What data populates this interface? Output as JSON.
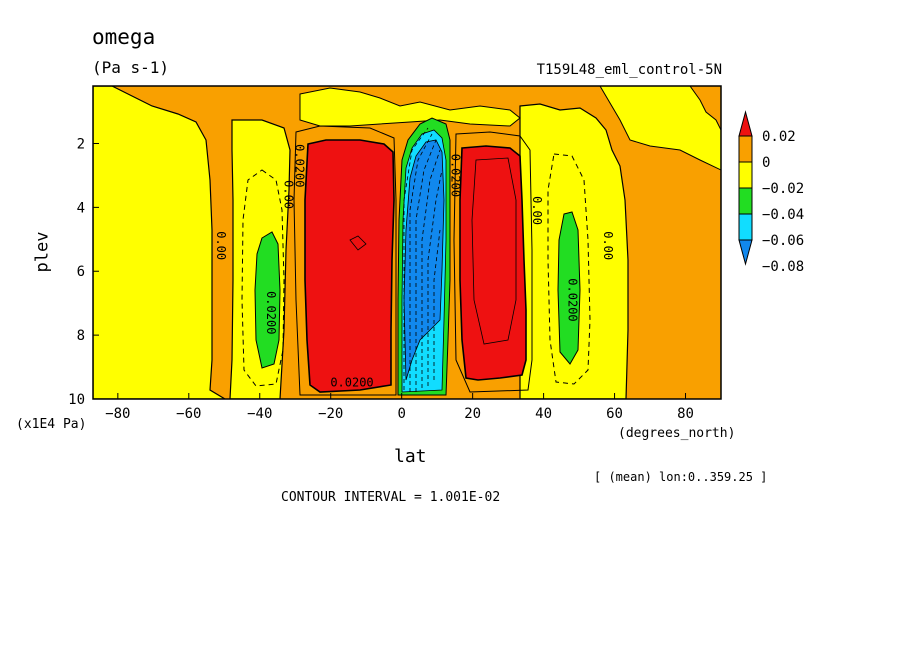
{
  "title": "omega",
  "units": "(Pa s-1)",
  "run_label": "T159L48_eml_control-5N",
  "ylabel": "plev",
  "yunit": "(x1E4 Pa)",
  "xlabel": "lat",
  "xunit": "(degrees_north)",
  "averaging": "[ (mean) lon:0..359.25 ]",
  "contour_interval": "CONTOUR INTERVAL = 1.001E-02",
  "colors": {
    "red": "#ee1111",
    "orange": "#f9a000",
    "yellow": "#ffff00",
    "green": "#22dd22",
    "cyan": "#11ddff",
    "blue": "#1188ee"
  },
  "chart_data": {
    "type": "heatmap",
    "xlim": [
      -87,
      90
    ],
    "ylim": [
      0.2,
      10
    ],
    "y_inverted": true,
    "x_ticks": [
      -80,
      -60,
      -40,
      -20,
      0,
      20,
      40,
      60,
      80
    ],
    "y_ticks": [
      2,
      4,
      6,
      8,
      10
    ],
    "colorbar": {
      "labels": [
        "0.02",
        "0",
        "-0.02",
        "-0.04",
        "-0.06",
        "-0.08"
      ],
      "bins": [
        {
          "range": "> 0.02",
          "color": "#ee1111"
        },
        {
          "range": "0 to 0.02",
          "color": "#f9a000"
        },
        {
          "range": "-0.02 to 0",
          "color": "#ffff00"
        },
        {
          "range": "-0.04 to -0.02",
          "color": "#22dd22"
        },
        {
          "range": "-0.06 to -0.04",
          "color": "#11ddff"
        },
        {
          "range": "< -0.06",
          "color": "#1188ee"
        }
      ]
    },
    "contour_labels": [
      {
        "text": "0.00",
        "lat": -51,
        "plev": 5.2
      },
      {
        "text": "0.0200",
        "lat": -37,
        "plev": 7.3
      },
      {
        "text": "0.00",
        "lat": -32,
        "plev": 3.6
      },
      {
        "text": "0.0200",
        "lat": -29,
        "plev": 2.7
      },
      {
        "text": "0.0200",
        "lat": -14,
        "plev": 9.5
      },
      {
        "text": "0.0200",
        "lat": 15,
        "plev": 3.0
      },
      {
        "text": "0.00",
        "lat": 38,
        "plev": 4.1
      },
      {
        "text": "0.0200",
        "lat": 48,
        "plev": 6.9
      },
      {
        "text": "0.00",
        "lat": 58,
        "plev": 5.2
      }
    ],
    "regions": [
      {
        "name": "sh-subsidence-max",
        "value": "> 0.02",
        "lat": [
          -29,
          -5
        ],
        "plev": [
          1.8,
          9.7
        ]
      },
      {
        "name": "nh-subsidence-max",
        "value": "> 0.02",
        "lat": [
          15,
          33
        ],
        "plev": [
          2.0,
          9.0
        ]
      },
      {
        "name": "itcz-ascent",
        "value": "< -0.06",
        "lat": [
          0,
          10
        ],
        "plev": [
          1.2,
          9.8
        ]
      },
      {
        "name": "sh-weak-ascent",
        "value": "-0.04 to -0.02",
        "lat": [
          -43,
          -36
        ],
        "plev": [
          4.5,
          8.9
        ]
      },
      {
        "name": "nh-weak-ascent",
        "value": "-0.04 to -0.02",
        "lat": [
          44,
          50
        ],
        "plev": [
          4.1,
          8.9
        ]
      }
    ]
  }
}
